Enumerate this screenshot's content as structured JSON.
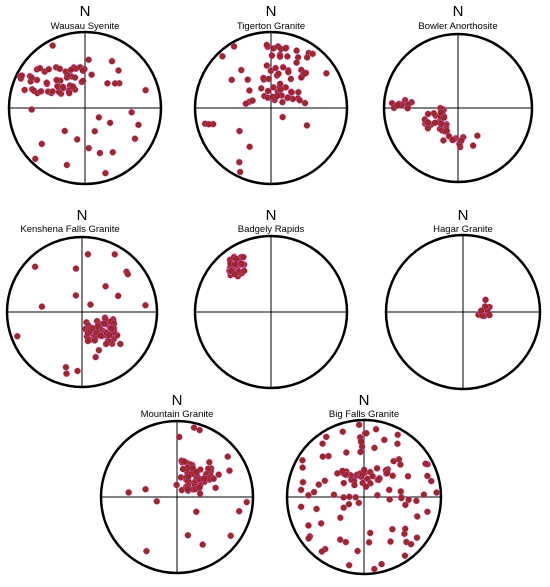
{
  "north_label": "N",
  "colors": {
    "circle": "#000000",
    "dot_fill": "#a0282a",
    "dot_halo": "#ff66cc",
    "cross": "#000000"
  },
  "plots": [
    {
      "name": "Wausau Syenite",
      "points": []
    },
    {
      "name": "Tigerton Granite",
      "points": []
    },
    {
      "name": "Bowler Anorthosite",
      "points": []
    },
    {
      "name": "Kenshena Falls Granite",
      "points": []
    },
    {
      "name": "Badgely Rapids",
      "points": []
    },
    {
      "name": "Hagar Granite",
      "points": []
    },
    {
      "name": "Mountain Granite",
      "points": []
    },
    {
      "name": "Big Falls Granite",
      "points": []
    }
  ]
}
